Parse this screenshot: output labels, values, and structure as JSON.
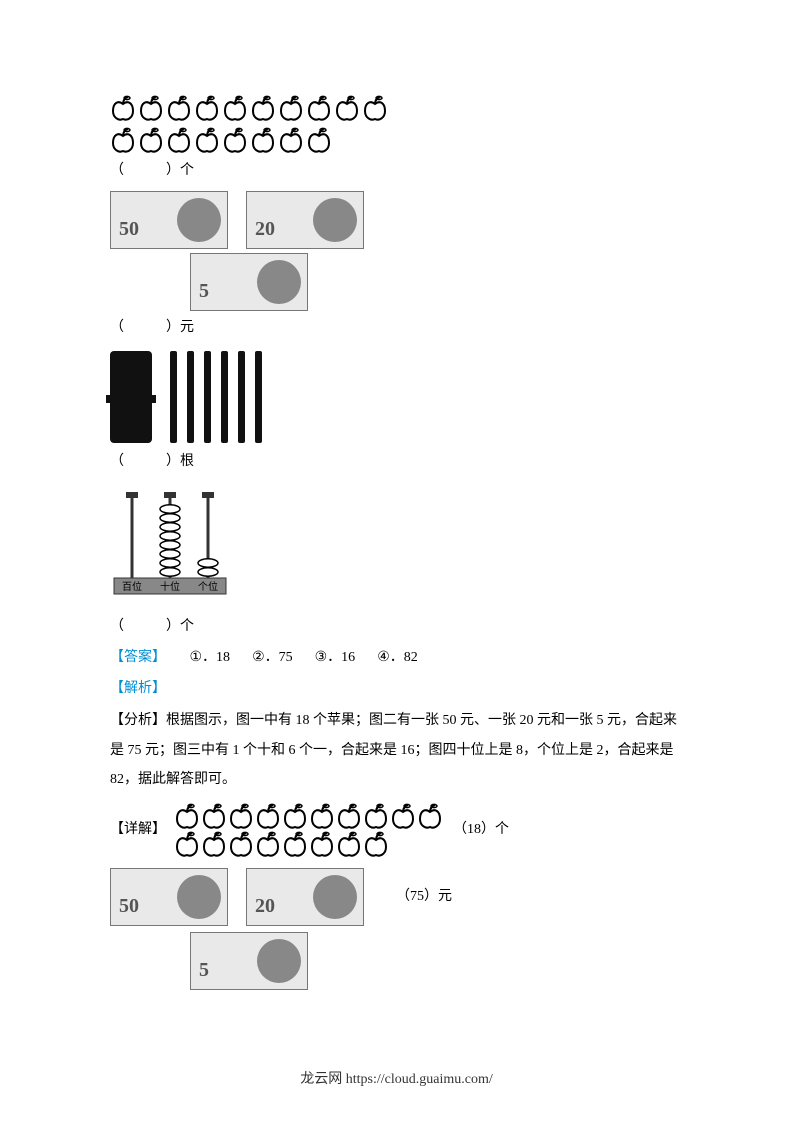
{
  "section1": {
    "apples_row1_count": 10,
    "apples_row2_count": 8,
    "unit_label": "（　　　）个"
  },
  "section2": {
    "notes_row1": [
      "50",
      "20"
    ],
    "notes_row2": [
      "5"
    ],
    "unit_label": "（　　　）元"
  },
  "section3": {
    "bundle_count": 1,
    "loose_stick_count": 6,
    "unit_label": "（　　　）根"
  },
  "section4": {
    "abacus_labels": [
      "百位",
      "十位",
      "个位"
    ],
    "abacus_beads": [
      0,
      8,
      2
    ],
    "unit_label": "（　　　）个"
  },
  "answer": {
    "label": "【答案】",
    "items": [
      {
        "num": "①．",
        "val": "18"
      },
      {
        "num": "②．",
        "val": "75"
      },
      {
        "num": "③．",
        "val": "16"
      },
      {
        "num": "④．",
        "val": "82"
      }
    ]
  },
  "analysis": {
    "label": "【解析】",
    "fenxi_label": "【分析】",
    "fenxi_text": "根据图示，图一中有 18 个苹果；图二有一张 50 元、一张 20 元和一张 5 元，合起来是 75 元；图三中有 1 个十和 6 个一，合起来是 16；图四十位上是 8，个位上是 2，合起来是 82，据此解答即可。",
    "detail_label": "【详解】",
    "detail_apples_row1": 10,
    "detail_apples_row2": 8,
    "detail_apples_ans": "（18）个",
    "detail_money_row1": [
      "50",
      "20"
    ],
    "detail_money_row2": [
      "5"
    ],
    "detail_money_ans": "（75）元"
  },
  "footer": {
    "text": "龙云网 https://cloud.guaimu.com/"
  },
  "style": {
    "apple_stroke": "#000000",
    "text_color": "#000000",
    "accent_color": "#008fd5",
    "banknote_bg": "#e9e9e9",
    "banknote_border": "#777777",
    "stick_color": "#111111",
    "abacus_base": "#888888"
  }
}
